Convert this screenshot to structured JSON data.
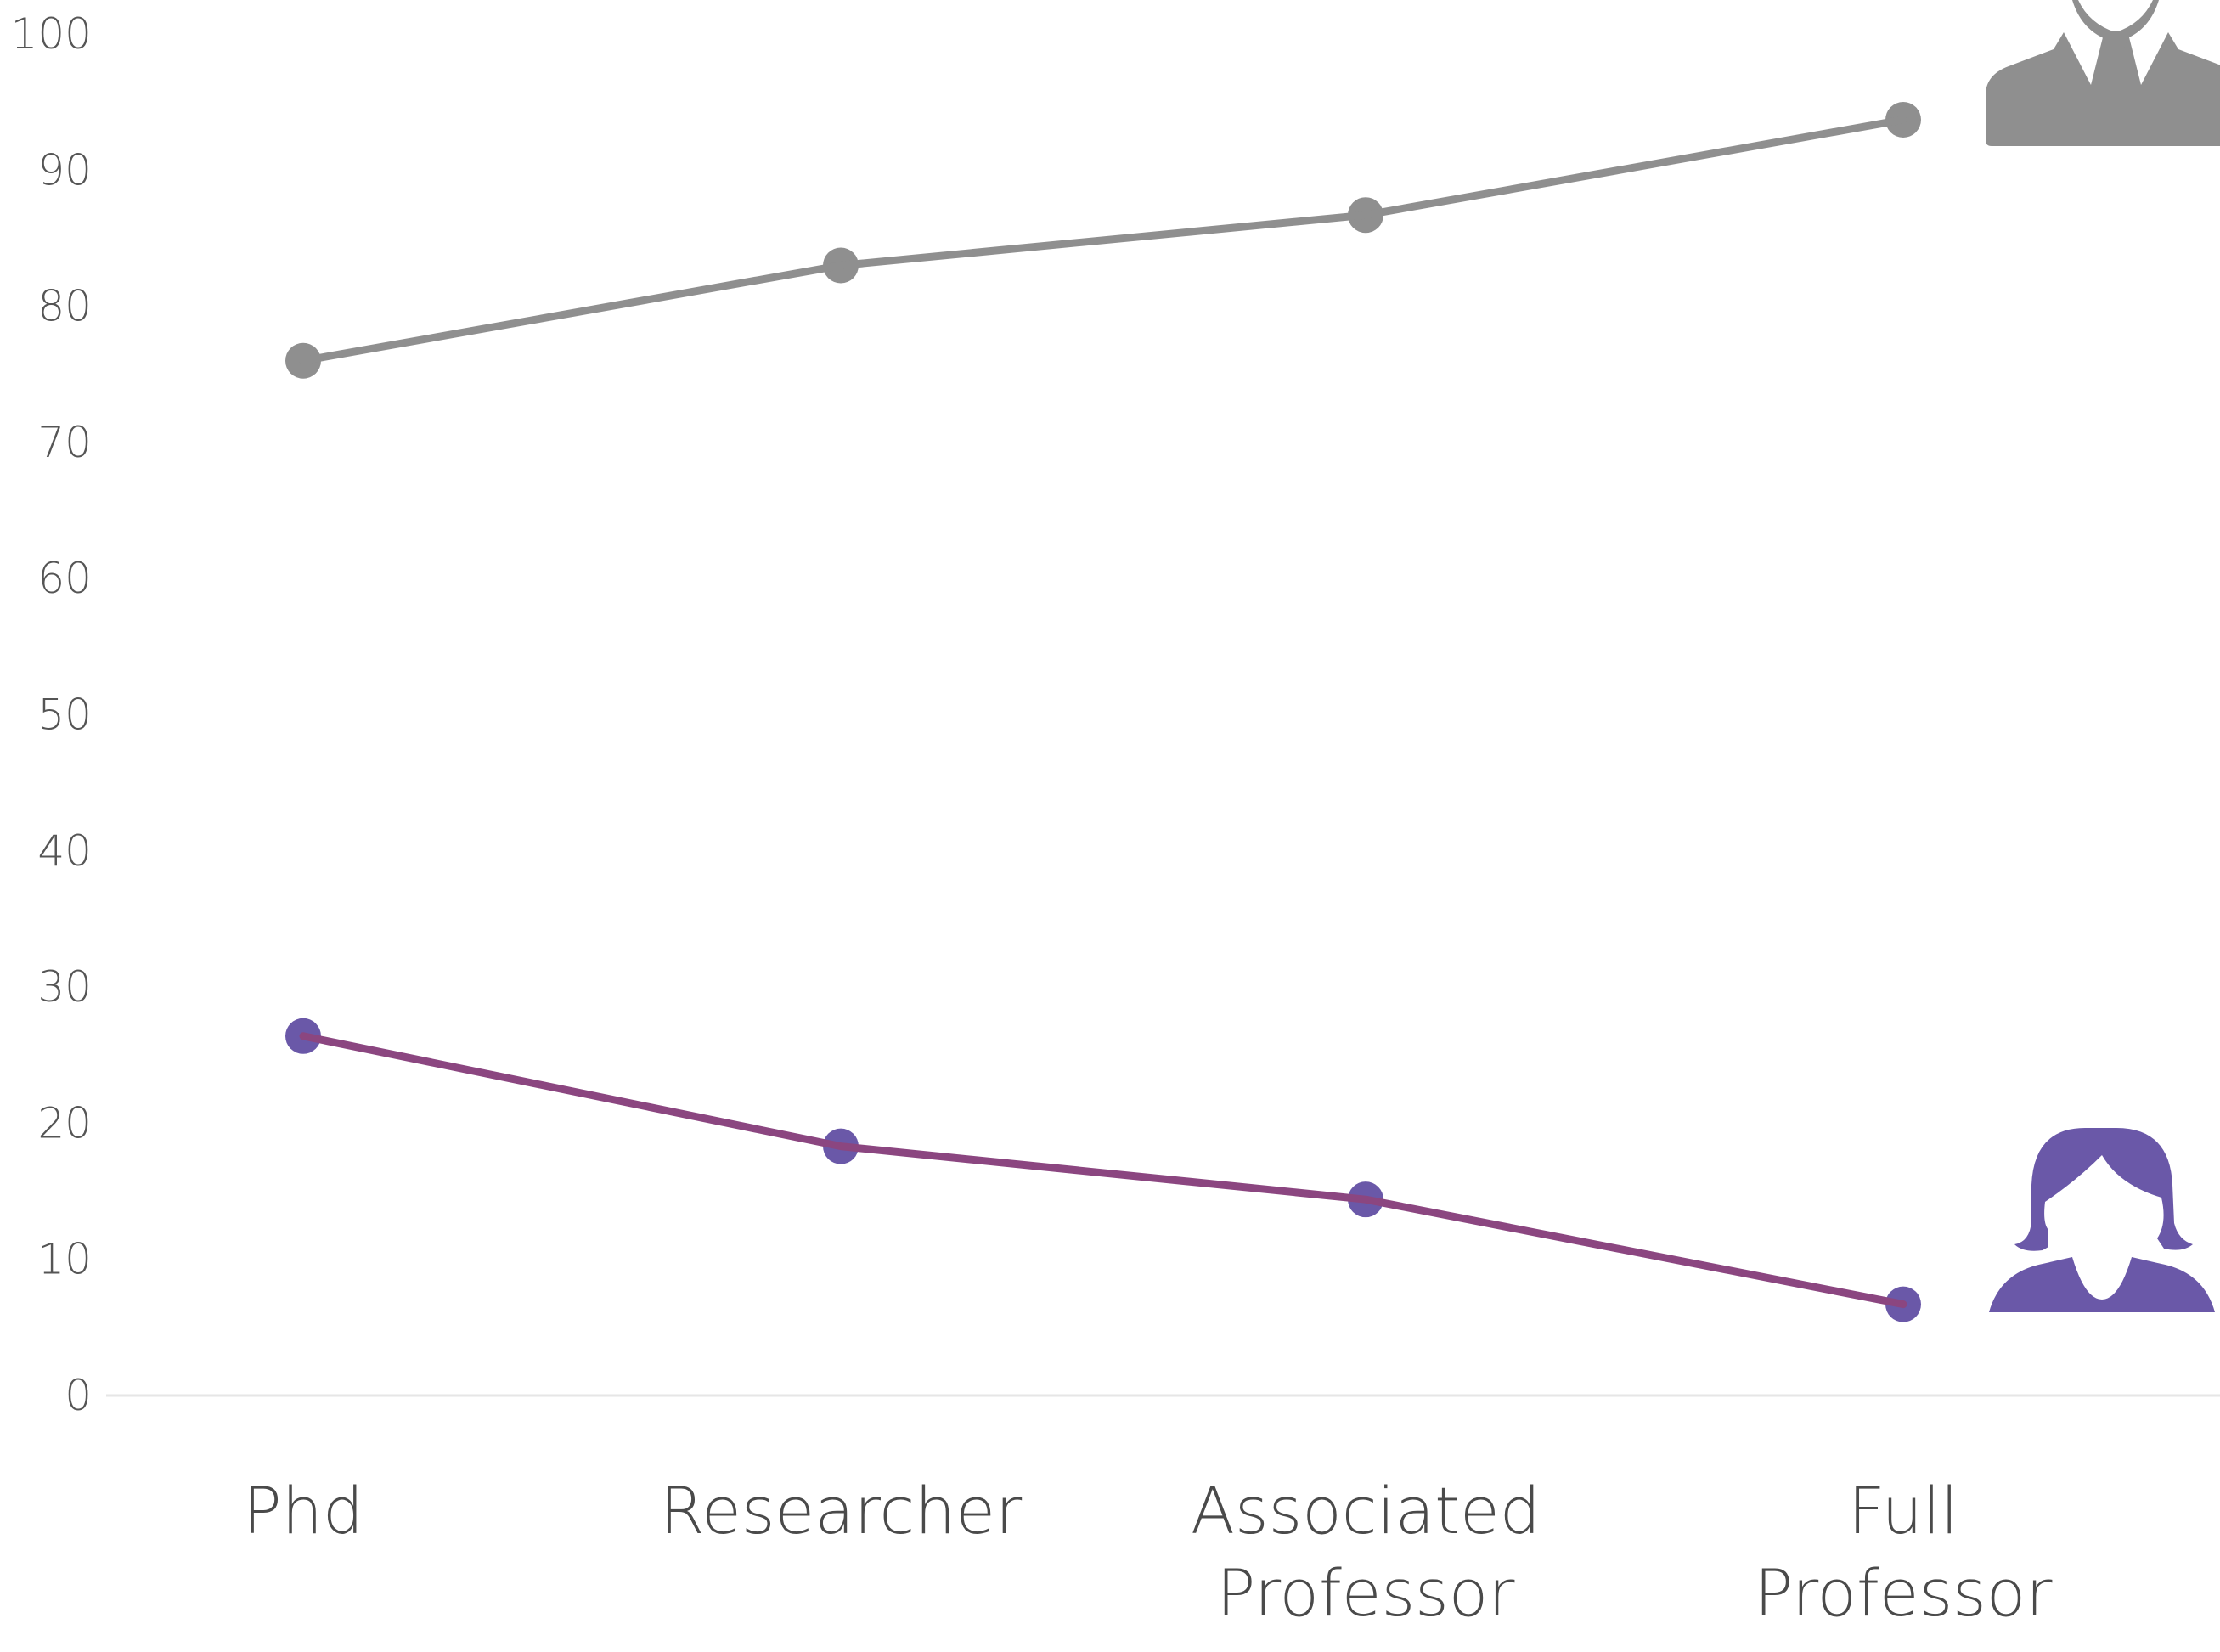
{
  "chart_data": {
    "type": "line",
    "title": "",
    "xlabel": "",
    "ylabel": "",
    "categories": [
      "Phd",
      "Researcher",
      "Associated Professor",
      "Full Professor"
    ],
    "category_lines": [
      [
        "Phd"
      ],
      [
        "Researcher"
      ],
      [
        "Associated",
        "Professor"
      ],
      [
        "Full",
        "Professor"
      ]
    ],
    "ylim": [
      0,
      100
    ],
    "yticks": [
      0,
      10,
      20,
      30,
      40,
      50,
      60,
      70,
      80,
      90,
      100
    ],
    "grid": false,
    "legend": "icons at right end of each line",
    "series": [
      {
        "key": "men",
        "values": [
          76,
          83,
          86.7,
          93.7
        ],
        "line_color": "#8f8f8f",
        "marker_color": "#8f8f8f",
        "icon": "man-icon"
      },
      {
        "key": "women",
        "values": [
          26.4,
          18.3,
          14.4,
          6.7
        ],
        "line_color": "#8b4680",
        "marker_color": "#6a58a8",
        "icon": "woman-icon"
      }
    ]
  }
}
